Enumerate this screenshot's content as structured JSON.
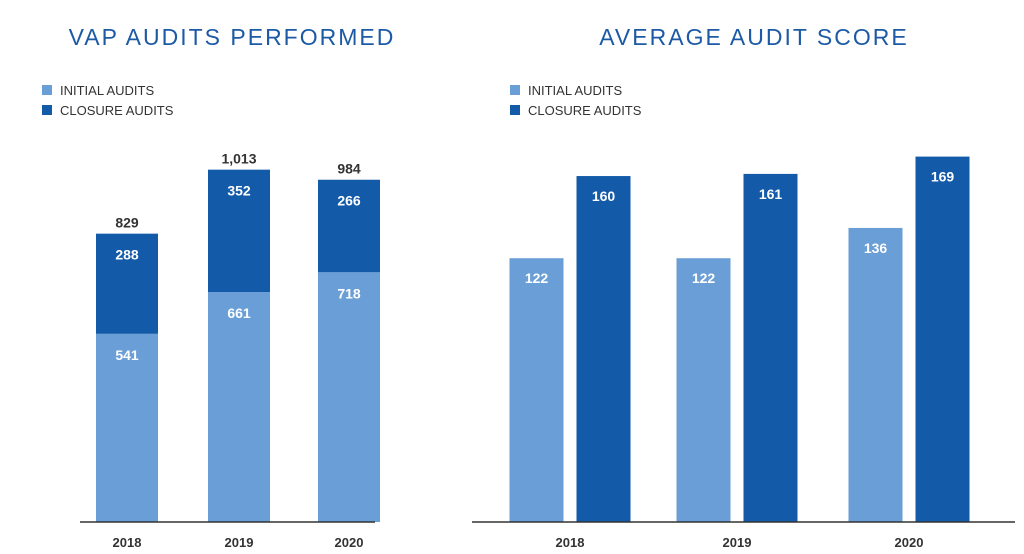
{
  "colors": {
    "initial": "#6a9ed6",
    "closure": "#135aa8",
    "title": "#1c5aa6",
    "text": "#333333",
    "axis": "#333333"
  },
  "chart_data": [
    {
      "type": "bar",
      "stacked": true,
      "title": "VAP AUDITS PERFORMED",
      "categories": [
        "2018",
        "2019",
        "2020"
      ],
      "series": [
        {
          "name": "INITIAL AUDITS",
          "values": [
            541,
            661,
            718
          ]
        },
        {
          "name": "CLOSURE AUDITS",
          "values": [
            288,
            352,
            266
          ]
        }
      ],
      "totals": [
        "829",
        "1,013",
        "984"
      ],
      "legend": [
        "INITIAL AUDITS",
        "CLOSURE AUDITS"
      ],
      "legend_position": "top-left",
      "ylim": [
        0,
        1150
      ],
      "grid": false
    },
    {
      "type": "bar",
      "stacked": false,
      "title": "AVERAGE AUDIT SCORE",
      "categories": [
        "2018",
        "2019",
        "2020"
      ],
      "series": [
        {
          "name": "INITIAL AUDITS",
          "values": [
            122,
            122,
            136
          ]
        },
        {
          "name": "CLOSURE AUDITS",
          "values": [
            160,
            161,
            169
          ]
        }
      ],
      "legend": [
        "INITIAL AUDITS",
        "CLOSURE AUDITS"
      ],
      "legend_position": "top-left",
      "ylim": [
        0,
        185
      ],
      "grid": false
    }
  ]
}
